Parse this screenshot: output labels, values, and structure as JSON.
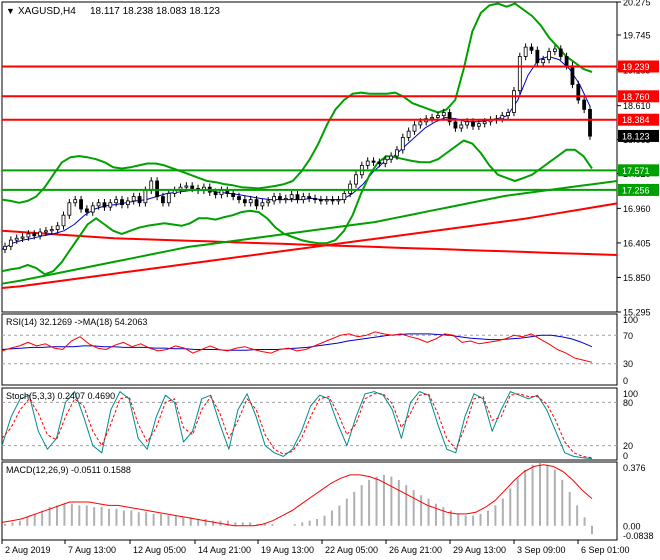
{
  "chart_data": {
    "type": "line",
    "symbol": "XAGUSD,H4",
    "ohlc_values": "18.117 18.238 18.083 18.123",
    "x_ticks": [
      "2 Aug 2019",
      "7 Aug 13:00",
      "12 Aug 05:00",
      "14 Aug 21:00",
      "19 Aug 13:00",
      "22 Aug 05:00",
      "26 Aug 21:00",
      "29 Aug 13:00",
      "3 Sep 09:00",
      "6 Sep 01:00"
    ],
    "price": {
      "ylim": [
        15.295,
        20.275
      ],
      "y_ticks": [
        "20.275",
        "19.745",
        "19.185",
        "18.610",
        "18.065",
        "17.520",
        "16.960",
        "16.405",
        "15.850",
        "15.295"
      ],
      "current_price": "18.123",
      "levels": [
        {
          "value": 19.239,
          "label": "19.239",
          "color": "#ff0000"
        },
        {
          "value": 18.76,
          "label": "18.760",
          "color": "#ff0000"
        },
        {
          "value": 18.384,
          "label": "18.384",
          "color": "#ff0000"
        },
        {
          "value": 17.571,
          "label": "17.571",
          "color": "#00a000"
        },
        {
          "value": 17.256,
          "label": "17.256",
          "color": "#00a000"
        }
      ],
      "close": [
        16.35,
        16.45,
        16.48,
        16.5,
        16.55,
        16.52,
        16.58,
        16.6,
        16.62,
        16.68,
        16.85,
        17.05,
        17.1,
        16.95,
        16.9,
        17.0,
        17.05,
        16.98,
        17.05,
        17.1,
        17.02,
        17.08,
        17.15,
        17.05,
        17.25,
        17.4,
        17.15,
        17.05,
        17.2,
        17.25,
        17.3,
        17.32,
        17.28,
        17.25,
        17.3,
        17.22,
        17.18,
        17.25,
        17.2,
        17.15,
        17.1,
        17.05,
        17.1,
        17.0,
        17.05,
        17.08,
        17.15,
        17.1,
        17.12,
        17.18,
        17.1,
        17.15,
        17.12,
        17.1,
        17.08,
        17.1,
        17.08,
        17.1,
        17.2,
        17.35,
        17.5,
        17.65,
        17.72,
        17.7,
        17.68,
        17.75,
        17.8,
        17.9,
        18.1,
        18.2,
        18.3,
        18.35,
        18.4,
        18.42,
        18.45,
        18.5,
        18.35,
        18.25,
        18.3,
        18.35,
        18.28,
        18.32,
        18.35,
        18.38,
        18.4,
        18.45,
        18.5,
        18.85,
        19.4,
        19.55,
        19.5,
        19.3,
        19.35,
        19.48,
        19.52,
        19.4,
        19.25,
        18.95,
        18.7,
        18.55,
        18.12
      ],
      "bands": {
        "color": "#00a000",
        "upper": [
          17.1,
          17.08,
          17.05,
          17.08,
          17.15,
          17.3,
          17.5,
          17.7,
          17.78,
          17.8,
          17.78,
          17.75,
          17.7,
          17.62,
          17.6,
          17.62,
          17.65,
          17.68,
          17.68,
          17.65,
          17.6,
          17.55,
          17.5,
          17.45,
          17.4,
          17.38,
          17.35,
          17.33,
          17.3,
          17.29,
          17.28,
          17.3,
          17.32,
          17.35,
          17.4,
          17.55,
          17.75,
          18.0,
          18.3,
          18.55,
          18.7,
          18.8,
          18.82,
          18.8,
          18.8,
          18.8,
          18.82,
          18.75,
          18.65,
          18.6,
          18.55,
          18.5,
          18.55,
          18.7,
          19.2,
          19.8,
          20.1,
          20.22,
          20.25,
          20.2,
          20.25,
          20.15,
          20.05,
          19.9,
          19.7,
          19.55,
          19.4,
          19.3,
          19.2,
          19.15
        ],
        "lower": [
          15.95,
          15.98,
          16.0,
          16.05,
          16.0,
          15.9,
          15.95,
          16.1,
          16.3,
          16.5,
          16.7,
          16.8,
          16.7,
          16.6,
          16.55,
          16.6,
          16.65,
          16.68,
          16.7,
          16.72,
          16.7,
          16.68,
          16.72,
          16.8,
          16.8,
          16.78,
          16.82,
          16.85,
          16.9,
          16.92,
          16.9,
          16.8,
          16.65,
          16.55,
          16.5,
          16.45,
          16.42,
          16.4,
          16.4,
          16.45,
          16.6,
          16.85,
          17.2,
          17.5,
          17.7,
          17.8,
          17.78,
          17.75,
          17.72,
          17.7,
          17.7,
          17.75,
          17.85,
          17.95,
          18.05,
          18.0,
          17.85,
          17.65,
          17.5,
          17.45,
          17.4,
          17.45,
          17.5,
          17.6,
          17.7,
          17.8,
          17.9,
          17.9,
          17.8,
          17.6
        ]
      },
      "moving_averages": [
        {
          "color": "#ff0000",
          "values": [
            15.68,
            15.71,
            15.75,
            15.79,
            15.83,
            15.87,
            15.91,
            15.95,
            15.99,
            16.03,
            16.07,
            16.11,
            16.15,
            16.19,
            16.23,
            16.27,
            16.31,
            16.35,
            16.39,
            16.43,
            16.47,
            16.51,
            16.55,
            16.59,
            16.63,
            16.67,
            16.71,
            16.75,
            16.79,
            16.84,
            16.89,
            16.94,
            16.99,
            17.04
          ]
        },
        {
          "color": "#ff0000",
          "values": [
            16.6,
            16.58,
            16.56,
            16.54,
            16.52,
            16.5,
            16.48,
            16.47,
            16.46,
            16.45,
            16.44,
            16.43,
            16.42,
            16.41,
            16.4,
            16.39,
            16.38,
            16.37,
            16.36,
            16.35,
            16.34,
            16.33,
            16.32,
            16.31,
            16.3,
            16.29,
            16.28,
            16.27,
            16.26,
            16.25,
            16.24,
            16.23,
            16.22,
            16.21
          ]
        },
        {
          "color": "#00a000",
          "values": [
            15.75,
            15.8,
            15.86,
            15.92,
            15.98,
            16.04,
            16.1,
            16.16,
            16.22,
            16.28,
            16.34,
            16.38,
            16.42,
            16.46,
            16.5,
            16.54,
            16.58,
            16.62,
            16.66,
            16.7,
            16.74,
            16.8,
            16.86,
            16.92,
            16.98,
            17.04,
            17.1,
            17.16,
            17.2,
            17.24,
            17.28,
            17.32,
            17.36,
            17.4
          ]
        },
        {
          "color": "#0000cc",
          "values": [
            16.3,
            16.4,
            16.45,
            16.48,
            16.52,
            16.55,
            16.6,
            16.7,
            16.85,
            16.95,
            17.0,
            17.02,
            17.05,
            17.08,
            17.1,
            17.15,
            17.2,
            17.22,
            17.24,
            17.26,
            17.25,
            17.22,
            17.2,
            17.18,
            17.15,
            17.12,
            17.1,
            17.1,
            17.1,
            17.1,
            17.12,
            17.1,
            17.1,
            17.1,
            17.2,
            17.35,
            17.55,
            17.7,
            17.8,
            17.95,
            18.1,
            18.25,
            18.35,
            18.42,
            18.4,
            18.35,
            18.35,
            18.37,
            18.4,
            18.45,
            18.7,
            19.1,
            19.35,
            19.4,
            19.35,
            19.2,
            18.95,
            18.6
          ]
        }
      ]
    },
    "rsi": {
      "label": "RSI(14) 32.1269 ->MA(18) 54.2063",
      "ylim": [
        0,
        100
      ],
      "y_ticks": [
        "100",
        "70",
        "30",
        "0"
      ],
      "levels": [
        70,
        30
      ],
      "rsi_color": "#ff0000",
      "ma_color": "#0000cc",
      "values": [
        48,
        52,
        55,
        60,
        55,
        58,
        52,
        50,
        62,
        68,
        58,
        52,
        50,
        56,
        60,
        54,
        58,
        52,
        48,
        50,
        55,
        52,
        45,
        50,
        55,
        50,
        48,
        52,
        54,
        50,
        47,
        45,
        50,
        52,
        48,
        50,
        55,
        60,
        65,
        70,
        72,
        68,
        70,
        75,
        72,
        70,
        72,
        68,
        65,
        60,
        65,
        72,
        70,
        60,
        62,
        58,
        60,
        62,
        65,
        70,
        68,
        72,
        65,
        58,
        50,
        45,
        38,
        35,
        32
      ],
      "ma_values": [
        50,
        51,
        52,
        53,
        53,
        54,
        54,
        54,
        55,
        55,
        54,
        54,
        53,
        53,
        53,
        52,
        52,
        51,
        51,
        50,
        50,
        50,
        49,
        49,
        49,
        50,
        50,
        50,
        51,
        52,
        53,
        55,
        57,
        59,
        62,
        64,
        66,
        68,
        70,
        71,
        72,
        72,
        72,
        71,
        70,
        68,
        66,
        65,
        64,
        64,
        65,
        66,
        68,
        70,
        70,
        68,
        65,
        60,
        54
      ]
    },
    "stoch": {
      "label": "Stoch(5,3,3) 0.2407 0.4690",
      "ylim": [
        0,
        100
      ],
      "y_ticks": [
        "100",
        "80",
        "20",
        "0"
      ],
      "levels": [
        80,
        20
      ],
      "main_color": "#008b8b",
      "signal_color": "#ff0000",
      "main": [
        20,
        60,
        85,
        90,
        40,
        15,
        30,
        80,
        95,
        60,
        20,
        10,
        70,
        95,
        85,
        30,
        15,
        60,
        90,
        80,
        25,
        40,
        85,
        90,
        50,
        15,
        70,
        92,
        60,
        20,
        10,
        5,
        15,
        40,
        75,
        90,
        85,
        50,
        20,
        60,
        92,
        95,
        90,
        70,
        30,
        80,
        95,
        90,
        50,
        15,
        10,
        60,
        92,
        85,
        40,
        70,
        95,
        90,
        85,
        90,
        70,
        40,
        10,
        5,
        3,
        2
      ],
      "signal": [
        30,
        45,
        70,
        85,
        65,
        35,
        28,
        60,
        85,
        75,
        40,
        20,
        50,
        85,
        88,
        50,
        25,
        45,
        80,
        85,
        45,
        35,
        70,
        88,
        65,
        30,
        55,
        85,
        70,
        35,
        15,
        8,
        12,
        30,
        60,
        85,
        88,
        65,
        35,
        50,
        85,
        92,
        92,
        78,
        45,
        65,
        90,
        92,
        65,
        30,
        15,
        45,
        85,
        88,
        55,
        60,
        90,
        92,
        88,
        88,
        78,
        55,
        25,
        10,
        5,
        3
      ]
    },
    "macd": {
      "label": "MACD(12,26,9) -0.0511 0.1588",
      "ylim": [
        -0.0838,
        0.376
      ],
      "y_ticks": [
        "0.376",
        "0.00",
        "-0.0838"
      ],
      "histogram_color": "#b0b0b0",
      "signal_color": "#ff0000",
      "histogram": [
        0.01,
        0.02,
        0.03,
        0.05,
        0.07,
        0.09,
        0.11,
        0.12,
        0.13,
        0.13,
        0.12,
        0.12,
        0.11,
        0.11,
        0.1,
        0.1,
        0.09,
        0.09,
        0.08,
        0.08,
        0.07,
        0.07,
        0.06,
        0.06,
        0.05,
        0.05,
        0.04,
        0.04,
        0.03,
        0.03,
        0.03,
        0.02,
        0.02,
        0.02,
        0.01,
        0.01,
        0.01,
        0.0,
        0.0,
        0.01,
        0.02,
        0.03,
        0.04,
        0.06,
        0.09,
        0.12,
        0.16,
        0.2,
        0.24,
        0.27,
        0.29,
        0.3,
        0.29,
        0.27,
        0.24,
        0.21,
        0.18,
        0.16,
        0.13,
        0.11,
        0.09,
        0.07,
        0.06,
        0.06,
        0.07,
        0.09,
        0.12,
        0.16,
        0.22,
        0.28,
        0.33,
        0.36,
        0.37,
        0.36,
        0.33,
        0.27,
        0.2,
        0.12,
        0.05,
        -0.05
      ],
      "signal": [
        0.02,
        0.03,
        0.04,
        0.06,
        0.08,
        0.1,
        0.12,
        0.14,
        0.14,
        0.14,
        0.13,
        0.12,
        0.12,
        0.11,
        0.1,
        0.09,
        0.08,
        0.07,
        0.06,
        0.05,
        0.04,
        0.03,
        0.02,
        0.01,
        0.0,
        0.0,
        0.0,
        0.01,
        0.03,
        0.06,
        0.09,
        0.13,
        0.17,
        0.21,
        0.25,
        0.28,
        0.3,
        0.3,
        0.29,
        0.27,
        0.24,
        0.21,
        0.18,
        0.15,
        0.12,
        0.1,
        0.08,
        0.07,
        0.07,
        0.08,
        0.11,
        0.15,
        0.21,
        0.27,
        0.32,
        0.35,
        0.36,
        0.35,
        0.32,
        0.27,
        0.21,
        0.16
      ]
    }
  }
}
